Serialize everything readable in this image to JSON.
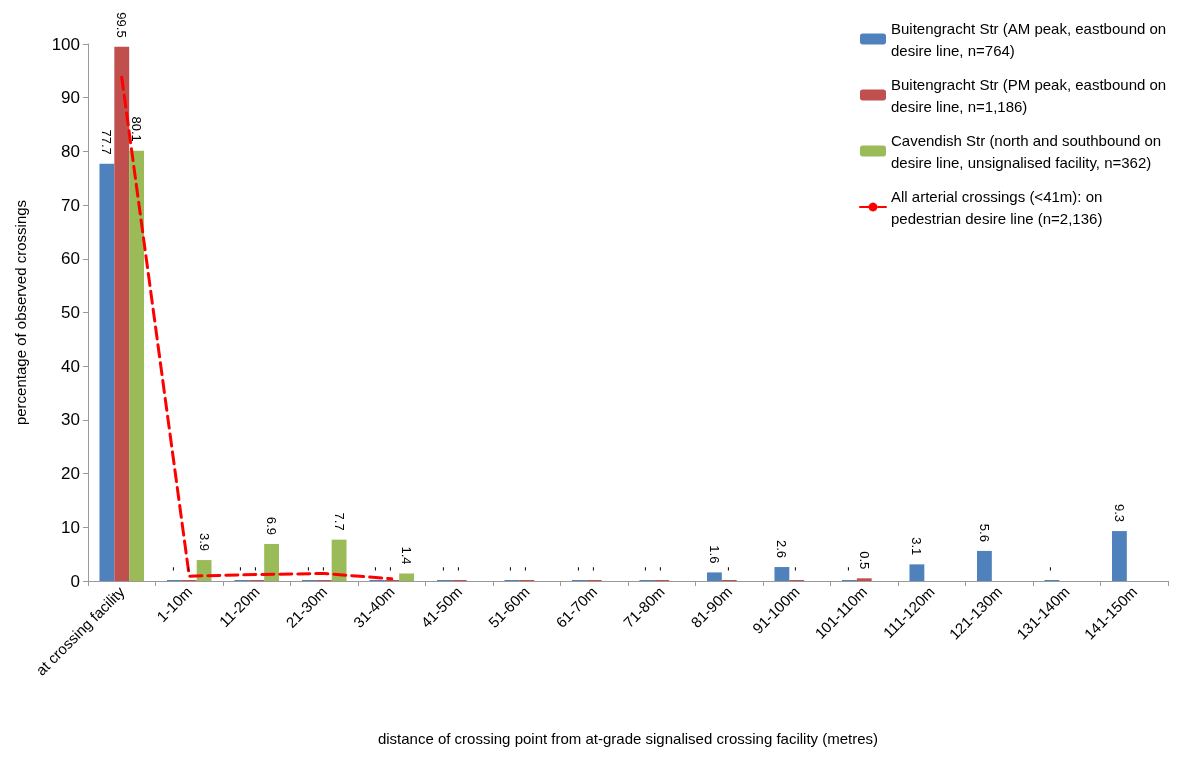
{
  "chart_data": {
    "type": "bar",
    "xlabel": "distance of crossing point from at-grade signalised crossing facility (metres)",
    "ylabel": "percentage of observed crossings",
    "categories": [
      "at crossing facility",
      "1-10m",
      "11-20m",
      "21-30m",
      "31-40m",
      "41-50m",
      "51-60m",
      "61-70m",
      "71-80m",
      "81-90m",
      "91-100m",
      "101-110m",
      "111-120m",
      "121-130m",
      "131-140m",
      "141-150m"
    ],
    "series": [
      {
        "name": "Buitengracht Str (AM peak, eastbound on desire line, n=764)",
        "color": "#4f81bd",
        "values": [
          77.7,
          0,
          0,
          0,
          0,
          0,
          0,
          0,
          0,
          1.6,
          2.6,
          0,
          3.1,
          5.6,
          0,
          9.3
        ],
        "value_labels": [
          "77.7",
          "-",
          "-",
          "-",
          "-",
          "-",
          "-",
          "-",
          "-",
          "1.6",
          "2.6",
          "-",
          "3.1",
          "5.6",
          "-",
          "9.3"
        ]
      },
      {
        "name": "Buitengracht Str (PM peak, eastbound on desire line, n=1,186)",
        "color": "#c0504d",
        "values": [
          99.5,
          0,
          0,
          0,
          0,
          0,
          0,
          0,
          0,
          0,
          0,
          0.5,
          null,
          null,
          null,
          null
        ],
        "value_labels": [
          "99.5",
          "-",
          "-",
          "-",
          "-",
          "-",
          "-",
          "-",
          "-",
          "-",
          "-",
          "0.5",
          null,
          null,
          null,
          null
        ]
      },
      {
        "name": "Cavendish Str (north and southbound on desire line, unsignalised facility, n=362)",
        "color": "#9bbb59",
        "values": [
          80.1,
          3.9,
          6.9,
          7.7,
          1.4,
          null,
          null,
          null,
          null,
          null,
          null,
          null,
          null,
          null,
          null,
          null
        ],
        "value_labels": [
          "80.1",
          "3.9",
          "6.9",
          "7.7",
          "1.4",
          null,
          null,
          null,
          null,
          null,
          null,
          null,
          null,
          null,
          null,
          null
        ]
      },
      {
        "name": "All arterial crossings (<41m): on pedestrian desire line (n=2,136)",
        "type": "line",
        "color": "#ff0000",
        "line_style": "dashed",
        "marker": "none",
        "values": [
          93.8,
          0.9,
          1.2,
          1.4,
          0.4,
          null,
          null,
          null,
          null,
          null,
          null,
          null,
          null,
          null,
          null,
          null
        ]
      }
    ],
    "ylim": [
      0,
      100
    ],
    "yticks": [
      0,
      10,
      20,
      30,
      40,
      50,
      60,
      70,
      80,
      90,
      100
    ],
    "grid": false,
    "legend": "top right"
  }
}
